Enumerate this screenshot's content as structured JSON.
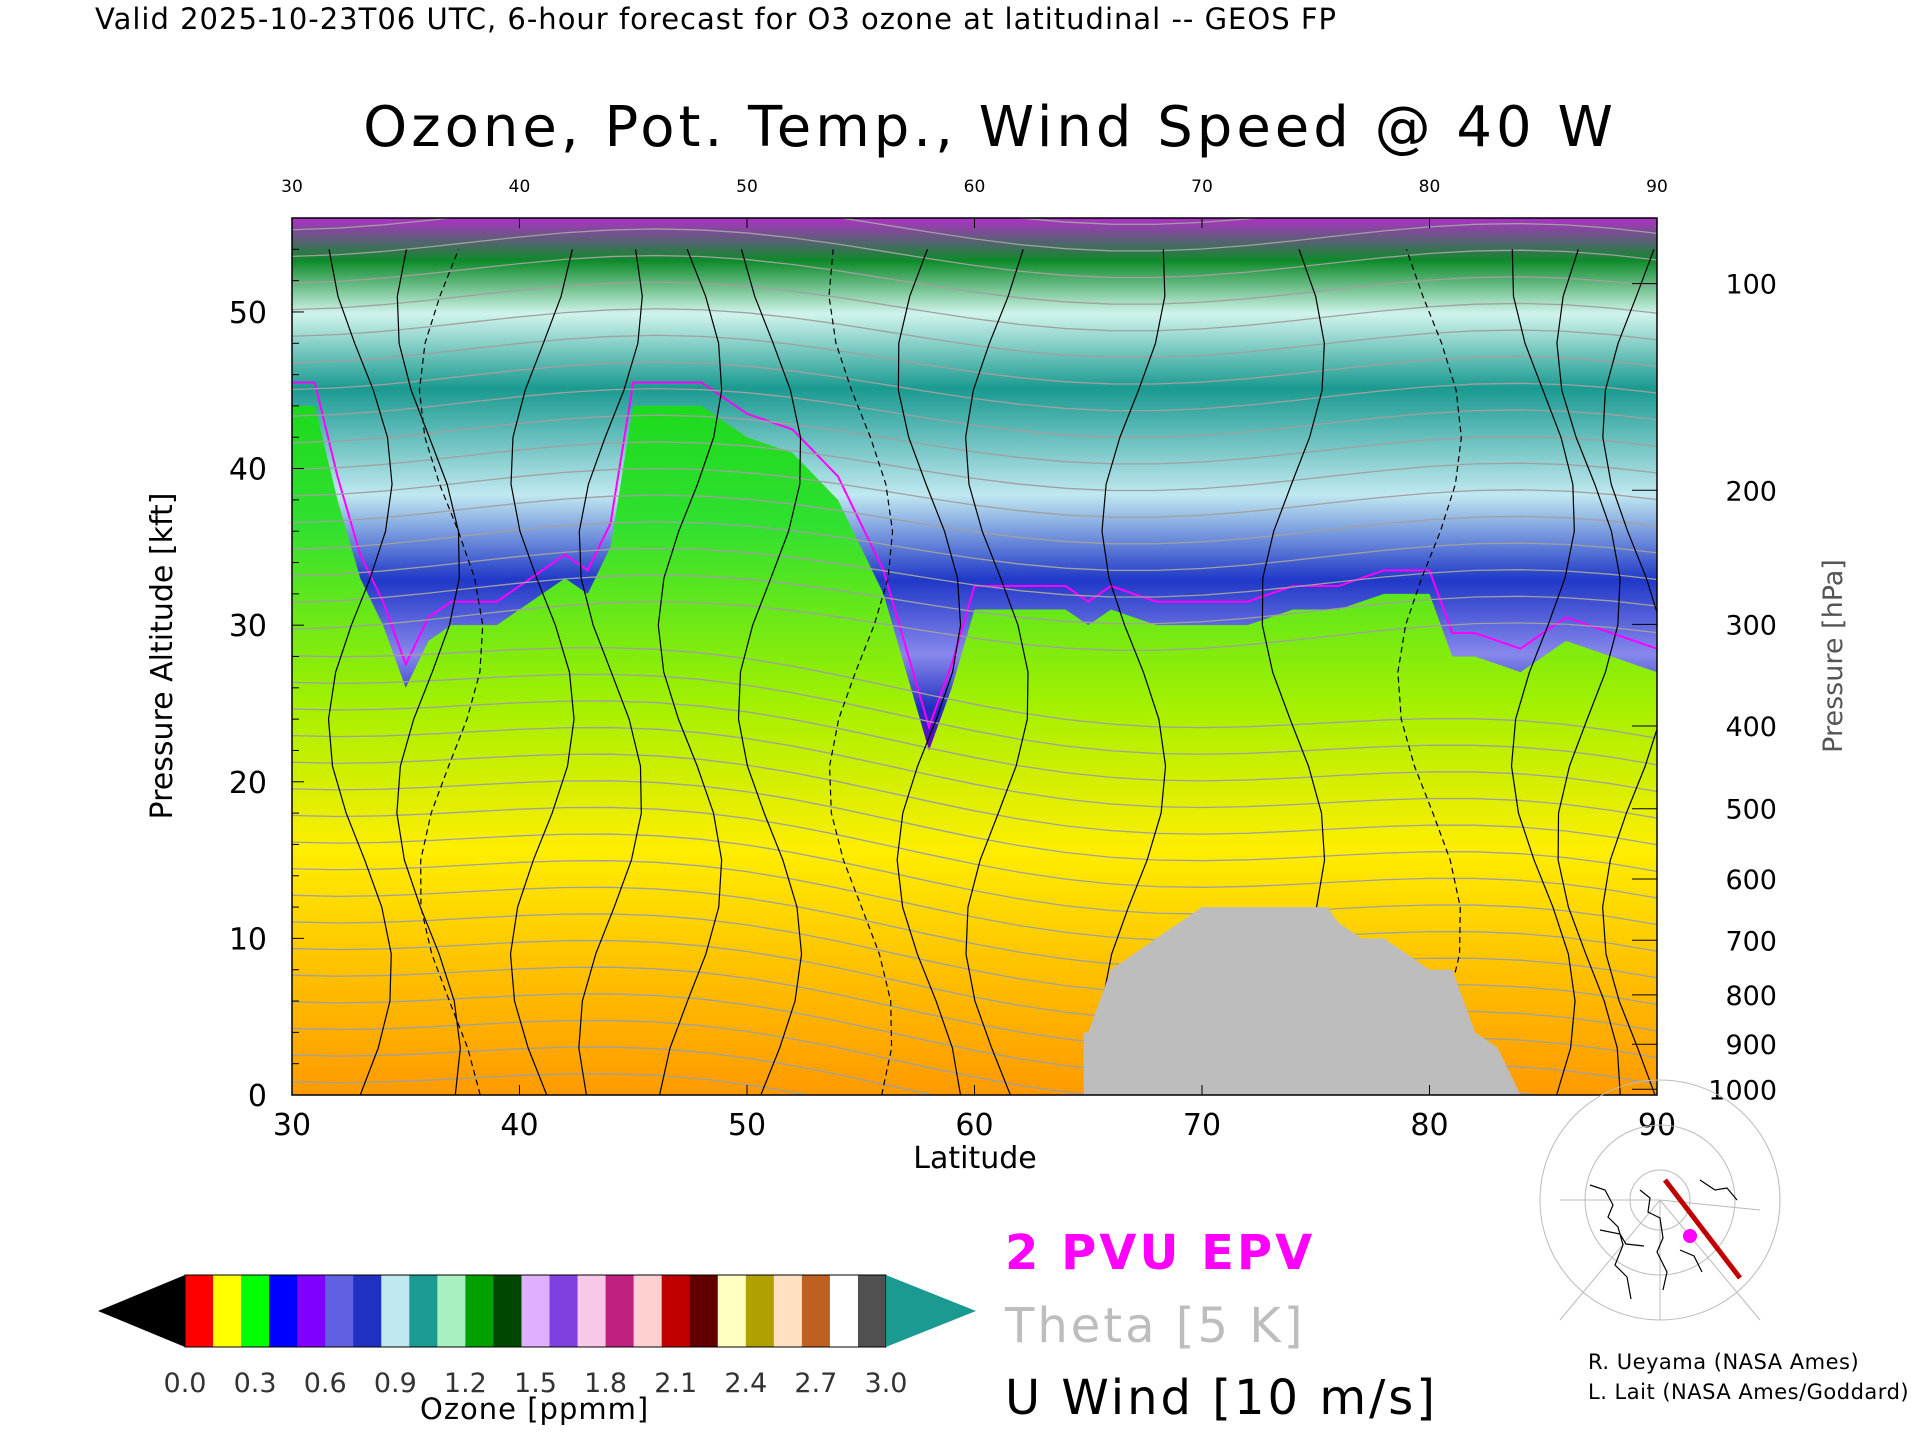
{
  "header": {
    "text": "Valid 2025-10-23T06 UTC, 6-hour forecast for O3 ozone at latitudinal -- GEOS FP"
  },
  "colors": {
    "epv": "#ff00ff",
    "theta": "#a0a0a0",
    "wind": "#000000",
    "terrain": "#bdbdbd",
    "ozone_scale": [
      "#000000",
      "#ff0000",
      "#ffff00",
      "#00ff00",
      "#0000ff",
      "#8000ff",
      "#6060e0",
      "#2030c0",
      "#c0e8f0",
      "#1a9a90",
      "#a8f0c0",
      "#00a000",
      "#004800",
      "#e0b0ff",
      "#8040e0",
      "#f8c8e8",
      "#c02080",
      "#ffd0d0",
      "#c00000",
      "#600000",
      "#ffffc0",
      "#b0a000",
      "#ffe0c0",
      "#c06020",
      "#ffffff",
      "#505050",
      "#1a9a90"
    ]
  },
  "chart_data": {
    "type": "heatmap",
    "title": "Ozone, Pot. Temp., Wind Speed @ 40 W",
    "xlabel": "Latitude",
    "ylabel": "Pressure Altitude [kft]",
    "y2label": "Pressure [hPa]",
    "xlim": [
      30,
      90
    ],
    "ylim": [
      0,
      56
    ],
    "x_ticks": [
      30,
      40,
      50,
      60,
      70,
      80,
      90
    ],
    "x_tick_labels": [
      "30",
      "40",
      "50",
      "60",
      "70",
      "80",
      "90"
    ],
    "y_ticks": [
      0,
      10,
      20,
      30,
      40,
      50
    ],
    "y_tick_labels": [
      "0",
      "10",
      "20",
      "30",
      "40",
      "50"
    ],
    "pressure_ticks": [
      {
        "hpa": 100,
        "label": "100"
      },
      {
        "hpa": 200,
        "label": "200"
      },
      {
        "hpa": 300,
        "label": "300"
      },
      {
        "hpa": 400,
        "label": "400"
      },
      {
        "hpa": 500,
        "label": "500"
      },
      {
        "hpa": 600,
        "label": "600"
      },
      {
        "hpa": 700,
        "label": "700"
      },
      {
        "hpa": 800,
        "label": "800"
      },
      {
        "hpa": 900,
        "label": "900"
      },
      {
        "hpa": 1000,
        "label": "1000"
      }
    ],
    "tropopause_kft": [
      [
        30,
        44
      ],
      [
        31,
        44
      ],
      [
        32,
        38
      ],
      [
        33,
        33
      ],
      [
        34,
        30
      ],
      [
        35,
        26
      ],
      [
        36,
        29
      ],
      [
        37,
        30
      ],
      [
        38,
        30
      ],
      [
        39,
        30
      ],
      [
        40,
        31
      ],
      [
        42,
        33
      ],
      [
        43,
        32
      ],
      [
        44,
        35
      ],
      [
        45,
        44
      ],
      [
        48,
        44
      ],
      [
        50,
        42
      ],
      [
        52,
        41
      ],
      [
        54,
        38
      ],
      [
        55,
        35
      ],
      [
        56,
        32
      ],
      [
        57,
        27
      ],
      [
        58,
        22
      ],
      [
        59,
        26
      ],
      [
        60,
        31
      ],
      [
        62,
        31
      ],
      [
        64,
        31
      ],
      [
        65,
        30
      ],
      [
        66,
        31
      ],
      [
        68,
        30
      ],
      [
        70,
        30
      ],
      [
        72,
        30
      ],
      [
        74,
        31
      ],
      [
        76,
        31
      ],
      [
        78,
        32
      ],
      [
        80,
        32
      ],
      [
        81,
        28
      ],
      [
        82,
        28
      ],
      [
        84,
        27
      ],
      [
        85,
        28
      ],
      [
        86,
        29
      ],
      [
        88,
        28
      ],
      [
        90,
        27
      ]
    ],
    "terrain": [
      [
        64.8,
        4
      ],
      [
        65,
        4
      ],
      [
        66,
        8
      ],
      [
        67,
        9
      ],
      [
        68,
        10
      ],
      [
        69,
        11
      ],
      [
        70,
        12
      ],
      [
        72,
        12
      ],
      [
        74,
        12
      ],
      [
        75.5,
        12
      ],
      [
        76,
        11
      ],
      [
        77,
        10
      ],
      [
        78,
        10
      ],
      [
        79,
        9
      ],
      [
        80,
        8
      ],
      [
        81,
        8
      ],
      [
        82,
        4
      ],
      [
        83,
        3
      ],
      [
        84,
        0
      ]
    ],
    "colorbar": {
      "min": 0.0,
      "max": 3.0,
      "tick_labels": [
        "0.0",
        "0.3",
        "0.6",
        "0.9",
        "1.2",
        "1.5",
        "1.8",
        "2.1",
        "2.4",
        "2.7",
        "3.0"
      ],
      "label": "Ozone [ppmm]"
    }
  },
  "legend": {
    "epv": "2 PVU EPV",
    "theta": "Theta [5 K]",
    "uwind": "U Wind [10 m/s]"
  },
  "credits": [
    "R. Ueyama (NASA Ames)",
    "L. Lait (NASA Ames/Goddard)"
  ]
}
